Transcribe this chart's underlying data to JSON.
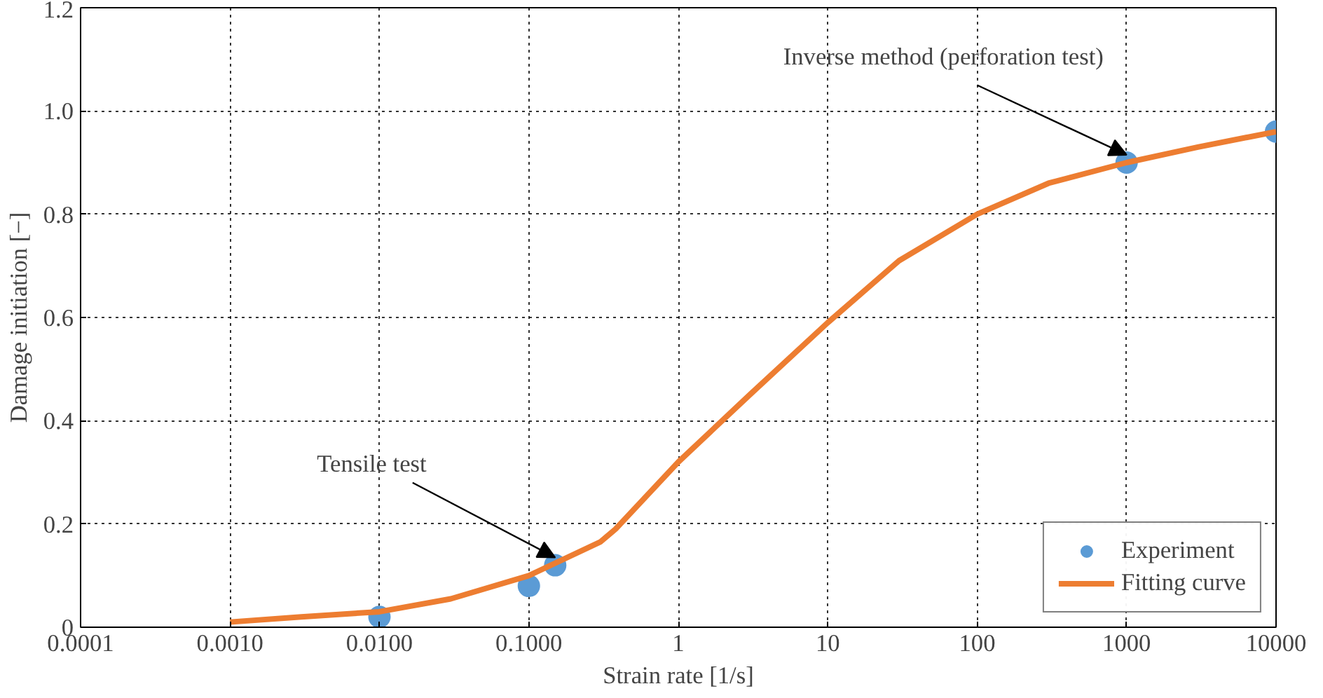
{
  "chart_data": {
    "type": "line",
    "xlabel": "Strain rate [1/s]",
    "ylabel": "Damage initiation [−]",
    "log": "x",
    "xlim": [
      0.0001,
      10000
    ],
    "ylim": [
      0,
      1.2
    ],
    "xticks": [
      {
        "value": 0.0001,
        "label": "0.0001"
      },
      {
        "value": 0.001,
        "label": "0.0010"
      },
      {
        "value": 0.01,
        "label": "0.0100"
      },
      {
        "value": 0.1,
        "label": "0.1000"
      },
      1,
      10,
      100,
      1000,
      10000
    ],
    "yticks": [
      0,
      0.2,
      0.4,
      0.6,
      0.8,
      {
        "value": 1,
        "label": "1.0"
      },
      1.2
    ],
    "grid": true,
    "legend": "bottom right",
    "series": [
      {
        "name": "Experiment",
        "type": "scatter",
        "marker": "circle",
        "color": "#5b9bd5",
        "x": [
          0.01,
          0.1,
          0.15,
          1000,
          10000
        ],
        "values": [
          0.02,
          0.08,
          0.12,
          0.9,
          0.96
        ]
      },
      {
        "name": "Fitting curve",
        "color": "#ed7d31",
        "x": [
          0.001,
          0.003,
          0.01,
          0.03,
          0.1,
          0.3,
          0.38,
          1,
          3,
          10,
          30,
          100,
          300,
          1000,
          3000,
          10000
        ],
        "values": [
          0.01,
          0.02,
          0.03,
          0.055,
          0.1,
          0.165,
          0.19,
          0.32,
          0.45,
          0.59,
          0.71,
          0.8,
          0.86,
          0.9,
          0.93,
          0.96
        ]
      }
    ],
    "annotations": [
      {
        "text": "Tensile test",
        "x": 0.15,
        "y": 0.12
      },
      {
        "text": "Inverse method (perforation test)",
        "x": 1000,
        "y": 0.9
      }
    ]
  }
}
